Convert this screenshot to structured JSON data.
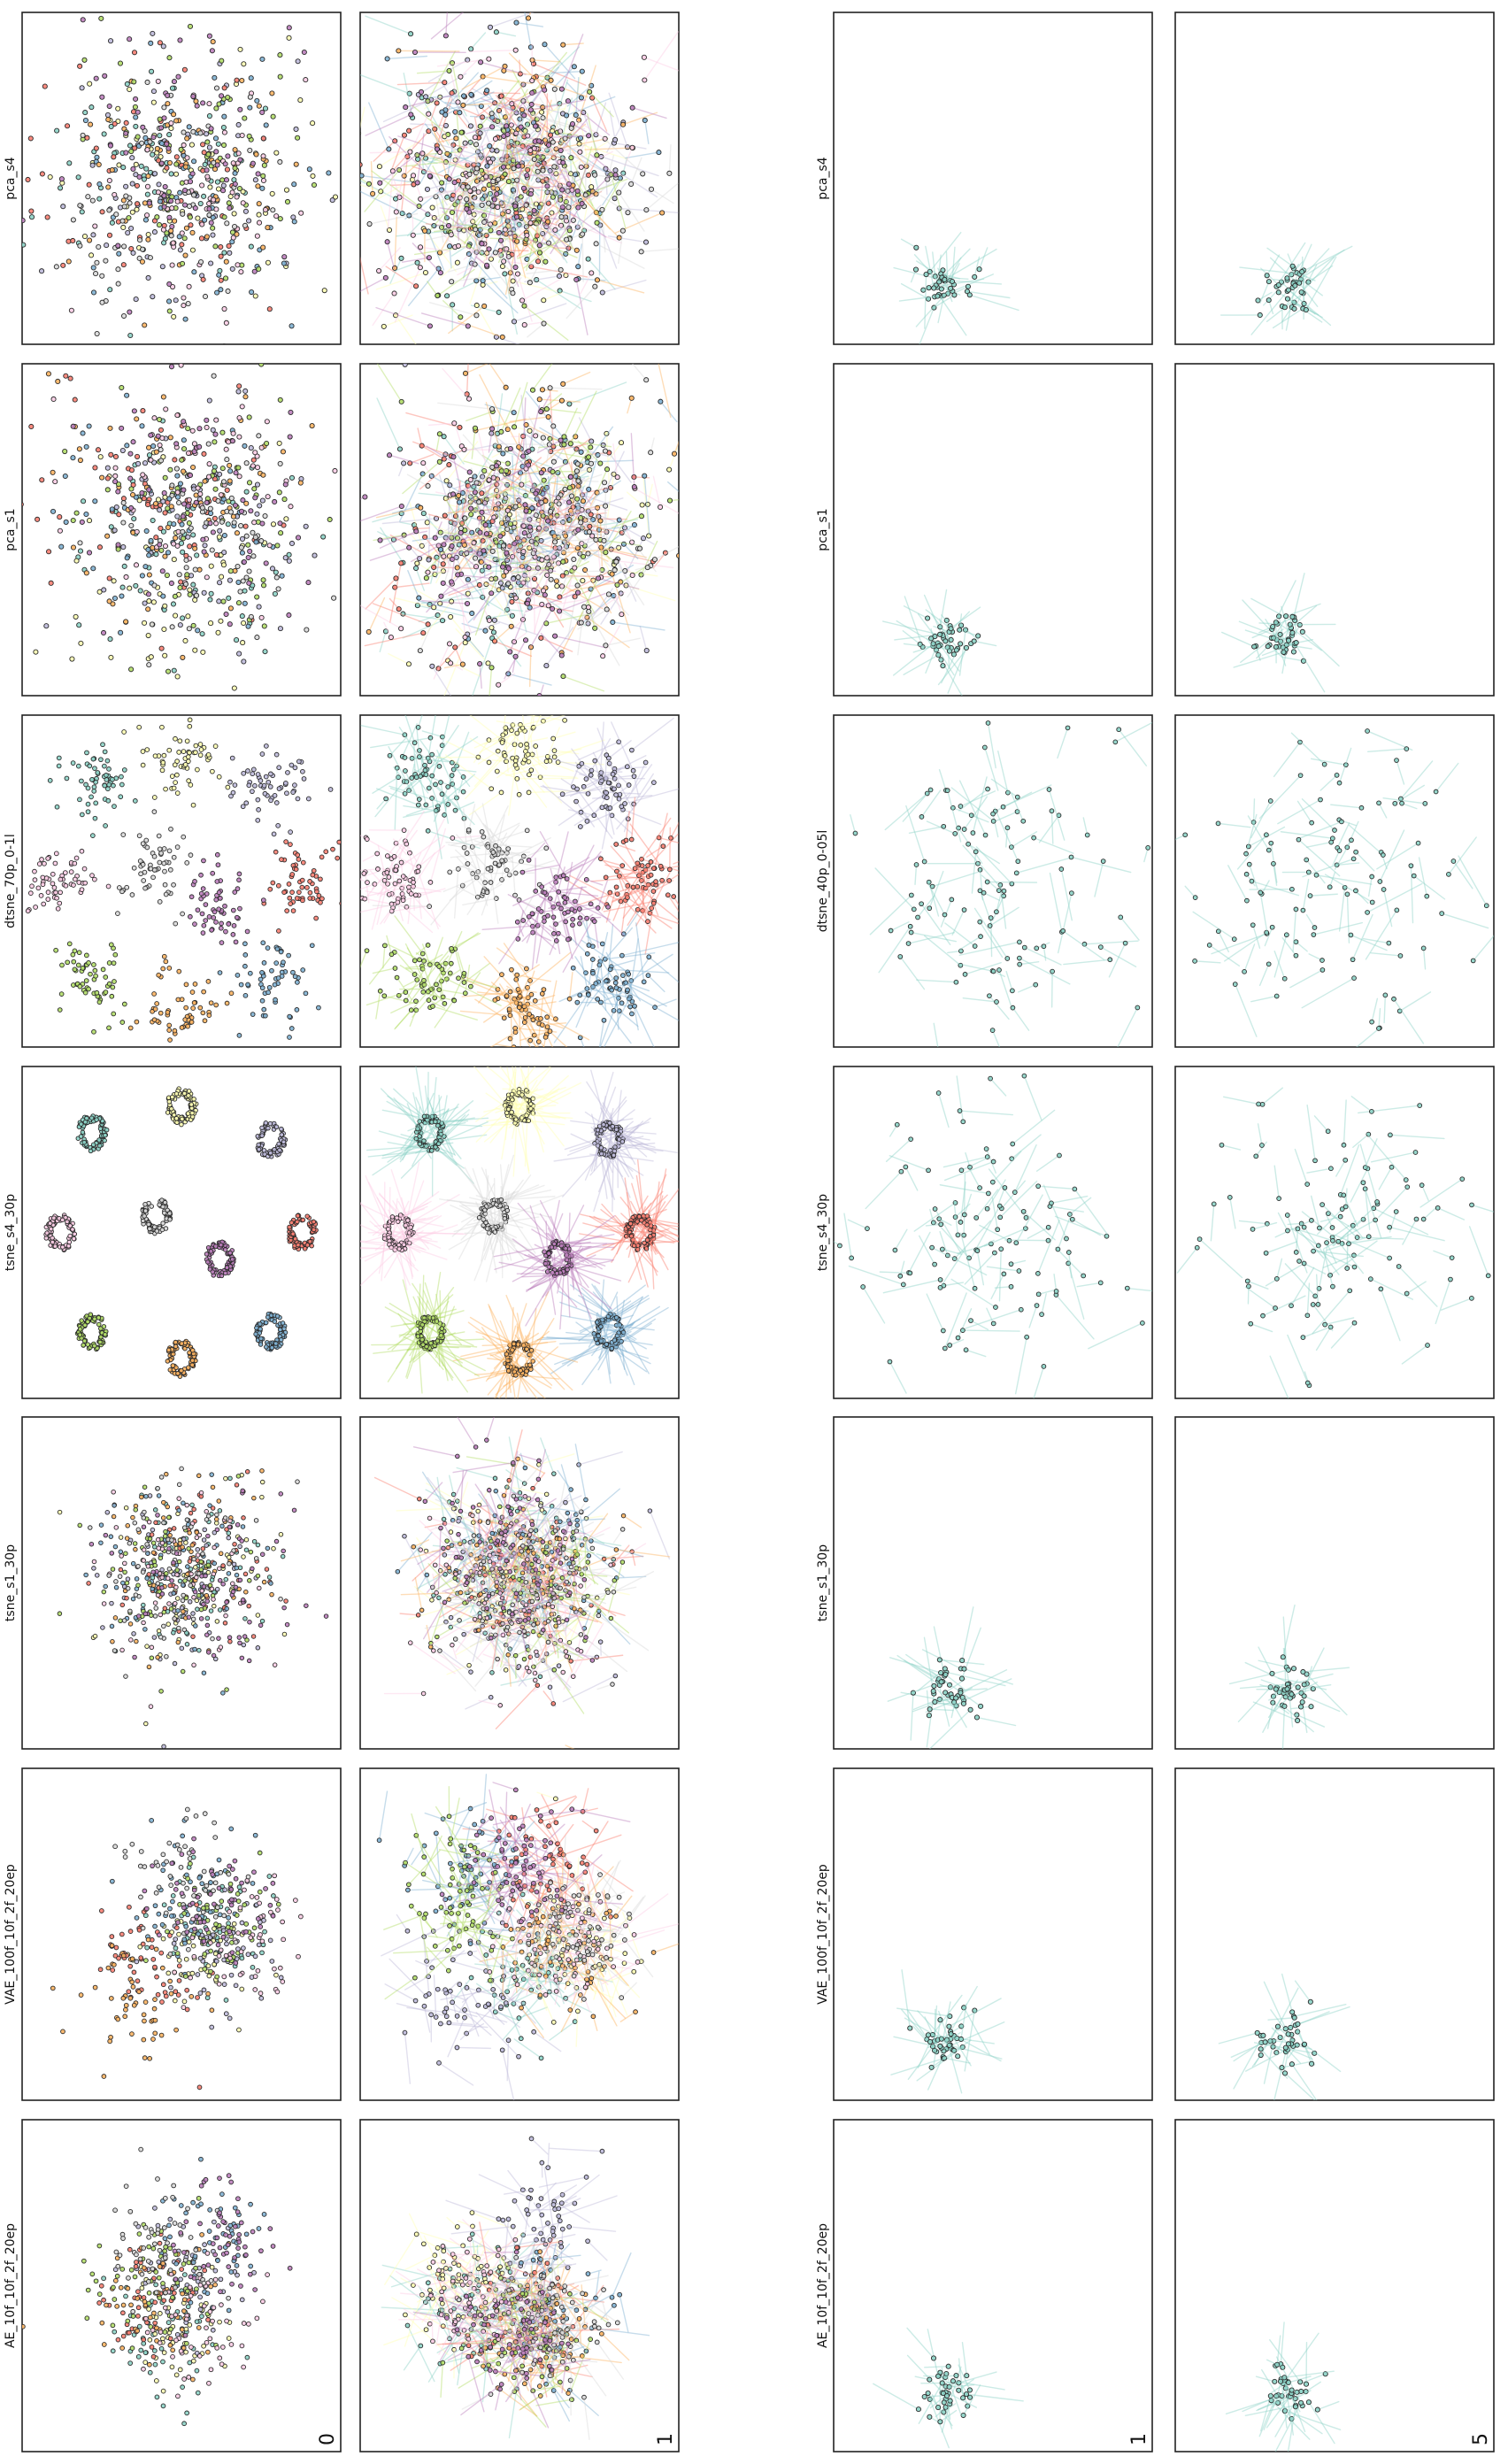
{
  "figure": {
    "description_free": true
  },
  "chart_data": {
    "type": "scatter",
    "layout": "4 column-groups x 7 rows of scatter panels, figure rotated 90 degrees",
    "columns": [
      {
        "group": "left",
        "index": 0,
        "corner_label": "0",
        "rows_labeled": true
      },
      {
        "group": "left",
        "index": 1,
        "corner_label": "1",
        "rows_labeled": false
      },
      {
        "group": "right",
        "index": 0,
        "corner_label": "1",
        "rows_labeled": true
      },
      {
        "group": "right",
        "index": 1,
        "corner_label": "5",
        "rows_labeled": false
      }
    ],
    "rows": [
      {
        "name": "pca_s4"
      },
      {
        "name": "pca_s1"
      },
      {
        "name": "dtsne_70p_0-1l"
      },
      {
        "name": "tsne_s4_30p"
      },
      {
        "name": "tsne_s1_30p"
      },
      {
        "name": "VAE_100f_10f_2f_20ep"
      },
      {
        "name": "AE_10f_10f_2f_20ep"
      }
    ],
    "right_rows": [
      {
        "name": "pca_s4"
      },
      {
        "name": "pca_s1"
      },
      {
        "name": "dtsne_40p_0-05l"
      },
      {
        "name": "tsne_s4_30p"
      },
      {
        "name": "tsne_s1_30p"
      },
      {
        "name": "VAE_100f_10f_2f_20ep"
      },
      {
        "name": "AE_10f_10f_2f_20ep"
      }
    ],
    "palette": [
      "#8dd3c7",
      "#ffffb3",
      "#bebada",
      "#fb8072",
      "#80b1d3",
      "#fdb462",
      "#b3de69",
      "#fccde5",
      "#d9d9d9",
      "#bc80bd"
    ],
    "n_classes": 10,
    "axes": {
      "ticks": false,
      "grid": false,
      "legend": "none"
    }
  }
}
